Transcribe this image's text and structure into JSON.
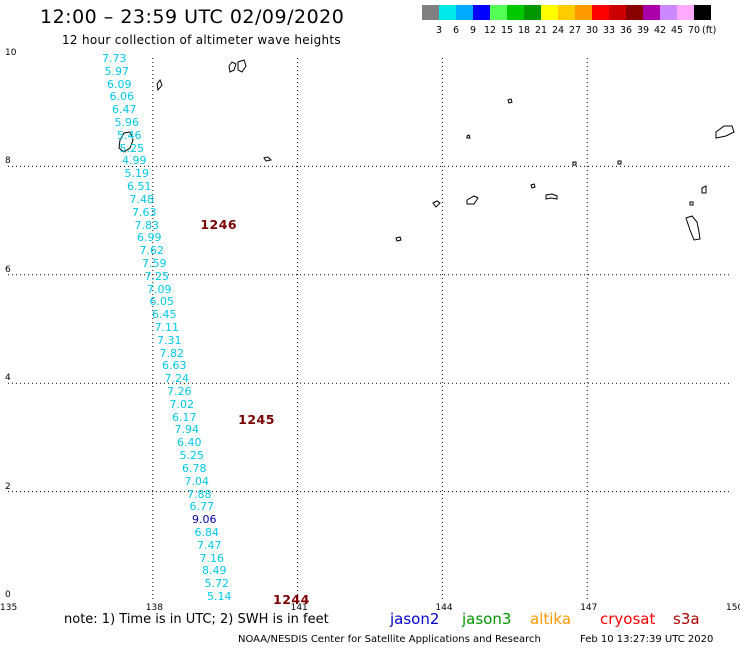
{
  "title": "12:00 – 23:59 UTC 02/09/2020",
  "subtitle": "12 hour collection of altimeter wave heights",
  "colorbar": {
    "unit": "(ft)",
    "labels": [
      "3",
      "6",
      "9",
      "12",
      "15",
      "18",
      "21",
      "24",
      "27",
      "30",
      "33",
      "36",
      "39",
      "42",
      "45",
      "70"
    ],
    "colors": [
      "#808080",
      "#00e8e8",
      "#00aaff",
      "#0000ff",
      "#55ff55",
      "#00c800",
      "#009600",
      "#ffff00",
      "#ffcc00",
      "#ff9900",
      "#ff0000",
      "#cc0000",
      "#880000",
      "#aa00aa",
      "#cc88ff",
      "#ffaaff",
      "#000000"
    ]
  },
  "axes": {
    "lon_ticks": [
      "135",
      "138",
      "141",
      "144",
      "147",
      "150"
    ],
    "lat_ticks": [
      "0",
      "2",
      "4",
      "6",
      "8",
      "10"
    ],
    "lon_range": [
      135,
      150
    ],
    "lat_range": [
      0,
      10
    ],
    "grid": "dotted"
  },
  "track": {
    "satellite": "cryosat",
    "values": [
      "7.73",
      "5.97",
      "6.09",
      "6.06",
      "6.47",
      "5.96",
      "5.46",
      "5.25",
      "4.99",
      "5.19",
      "6.51",
      "7.48",
      "7.63",
      "7.83",
      "6.99",
      "7.62",
      "7.59",
      "7.25",
      "7.09",
      "6.05",
      "6.45",
      "7.11",
      "7.31",
      "7.82",
      "6.63",
      "7.24",
      "7.26",
      "7.02",
      "6.17",
      "7.94",
      "6.40",
      "5.25",
      "6.78",
      "7.04",
      "7.88",
      "6.77",
      "9.06",
      "6.84",
      "7.47",
      "7.16",
      "8.49",
      "5.72",
      "5.14"
    ],
    "colors": {
      "default": "#00c8e8",
      "high": "#0000aa"
    },
    "timestamps": [
      {
        "label": "1246",
        "lat": 6.92
      },
      {
        "label": "1245",
        "lat": 3.32
      },
      {
        "label": "1244",
        "lat": 0.0
      }
    ]
  },
  "note": "note:  1) Time is in UTC;  2) SWH is in feet",
  "satellites": [
    {
      "name": "jason2",
      "color": "#0000cc"
    },
    {
      "name": "jason3",
      "color": "#009600"
    },
    {
      "name": "altika",
      "color": "#ff9900"
    },
    {
      "name": "cryosat",
      "color": "#ff0000"
    },
    {
      "name": "s3a",
      "color": "#aa0000"
    }
  ],
  "credit": "NOAA/NESDIS Center for Satellite Applications and Research",
  "creation": "Feb 10 13:27:39 UTC 2020"
}
